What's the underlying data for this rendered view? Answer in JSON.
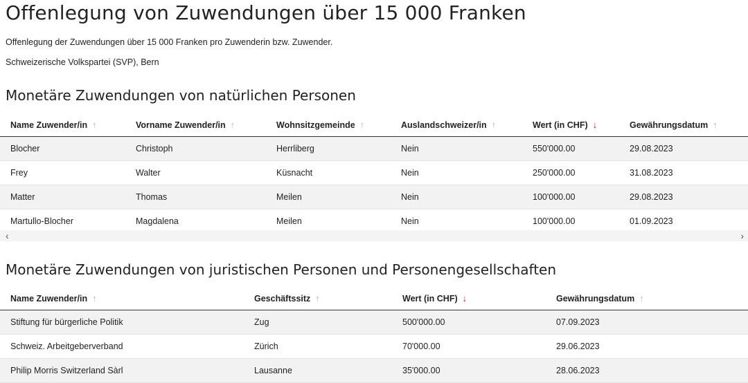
{
  "page": {
    "title": "Offenlegung von Zuwendungen über 15 000 Franken",
    "description": "Offenlegung der Zuwendungen über 15 000 Franken pro Zuwenderin bzw. Zuwender.",
    "party": "Schweizerische Volkspartei (SVP), Bern"
  },
  "colors": {
    "active_sort": "#c0141a",
    "inactive_sort": "#b5b5b5",
    "row_stripe": "#f2f2f2"
  },
  "natural": {
    "heading": "Monetäre Zuwendungen von natürlichen Personen",
    "columns": [
      {
        "label": "Name Zuwender/in",
        "sort_icon": "arrow-up-icon"
      },
      {
        "label": "Vorname Zuwender/in",
        "sort_icon": "arrow-up-icon"
      },
      {
        "label": "Wohnsitzgemeinde",
        "sort_icon": "arrow-up-icon"
      },
      {
        "label": "Auslandschweizer/in",
        "sort_icon": "arrow-up-icon"
      },
      {
        "label": "Wert (in CHF)",
        "sort_icon": "arrow-down-icon"
      },
      {
        "label": "Gewährungsdatum",
        "sort_icon": "arrow-up-icon"
      }
    ],
    "rows": [
      {
        "name": "Blocher",
        "vorname": "Christoph",
        "gemeinde": "Herrliberg",
        "ausland": "Nein",
        "wert": "550'000.00",
        "datum": "29.08.2023"
      },
      {
        "name": "Frey",
        "vorname": "Walter",
        "gemeinde": "Küsnacht",
        "ausland": "Nein",
        "wert": "250'000.00",
        "datum": "31.08.2023"
      },
      {
        "name": "Matter",
        "vorname": "Thomas",
        "gemeinde": "Meilen",
        "ausland": "Nein",
        "wert": "100'000.00",
        "datum": "29.08.2023"
      },
      {
        "name": "Martullo-Blocher",
        "vorname": "Magdalena",
        "gemeinde": "Meilen",
        "ausland": "Nein",
        "wert": "100'000.00",
        "datum": "01.09.2023"
      }
    ],
    "scroll_left": "‹",
    "scroll_right": "›"
  },
  "legal": {
    "heading": "Monetäre Zuwendungen von juristischen Personen und Personengesellschaften",
    "columns": [
      {
        "label": "Name Zuwender/in",
        "sort_icon": "arrow-up-icon"
      },
      {
        "label": "Geschäftssitz",
        "sort_icon": "arrow-up-icon"
      },
      {
        "label": "Wert (in CHF)",
        "sort_icon": "arrow-down-icon"
      },
      {
        "label": "Gewährungsdatum",
        "sort_icon": "arrow-up-icon"
      }
    ],
    "rows": [
      {
        "name": "Stiftung für bürgerliche Politik",
        "sitz": "Zug",
        "wert": "500'000.00",
        "datum": "07.09.2023"
      },
      {
        "name": "Schweiz. Arbeitgeberverband",
        "sitz": "Zürich",
        "wert": "70'000.00",
        "datum": "29.06.2023"
      },
      {
        "name": "Philip Morris Switzerland Sàrl",
        "sitz": "Lausanne",
        "wert": "35'000.00",
        "datum": "28.06.2023"
      }
    ]
  }
}
